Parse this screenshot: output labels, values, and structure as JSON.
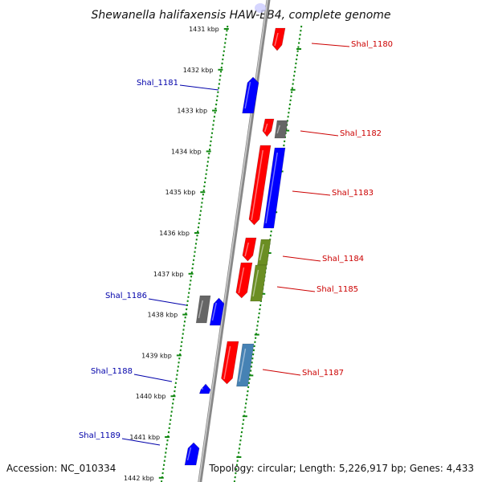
{
  "title": "Shewanella halifaxensis HAW-EB4, complete genome",
  "accession": "Accession: NC_010334",
  "topology": "Topology: circular; Length: 5,226,917 bp; Genes: 4,433",
  "colors": {
    "red": "#ff0000",
    "blue": "#0000ff",
    "gray": "#666666",
    "olive": "#6b8e23",
    "steelblue": "#4682b4",
    "label_red": "#cc0000",
    "label_blue": "#0000aa",
    "scale_green": "#118811",
    "backbone": "#888888"
  },
  "scale_ticks": [
    "1431 kbp",
    "1432 kbp",
    "1433 kbp",
    "1434 kbp",
    "1435 kbp",
    "1436 kbp",
    "1437 kbp",
    "1438 kbp",
    "1439 kbp",
    "1440 kbp",
    "1441 kbp",
    "1442 kbp"
  ],
  "genes": [
    {
      "label": "Shal_1180",
      "strand": "+",
      "color": "red"
    },
    {
      "label": "Shal_1181",
      "strand": "-",
      "color": "blue"
    },
    {
      "label": "Shal_1182",
      "strand": "+",
      "color": "red"
    },
    {
      "label": "Shal_1183",
      "strand": "+",
      "color": "red"
    },
    {
      "label": "Shal_1184",
      "strand": "+",
      "color": "red"
    },
    {
      "label": "Shal_1185",
      "strand": "+",
      "color": "red"
    },
    {
      "label": "Shal_1186",
      "strand": "-",
      "color": "blue"
    },
    {
      "label": "Shal_1187",
      "strand": "+",
      "color": "red"
    },
    {
      "label": "Shal_1188",
      "strand": "-",
      "color": "blue"
    },
    {
      "label": "Shal_1189",
      "strand": "-",
      "color": "blue"
    }
  ]
}
